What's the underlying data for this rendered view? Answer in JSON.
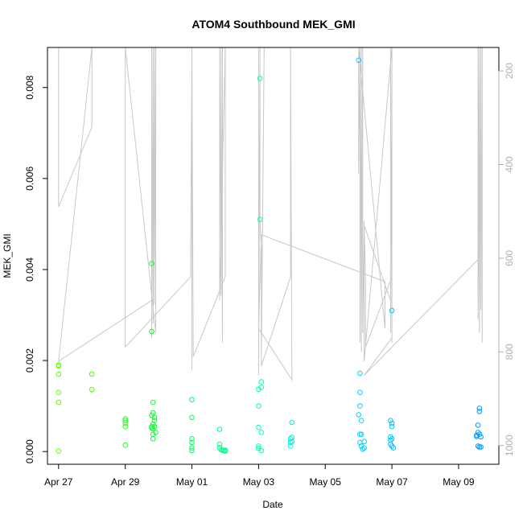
{
  "chart_data": {
    "type": "scatter",
    "title": "ATOM4 Southbound MEK_GMI",
    "xlabel": "Date",
    "ylabel": "MEK_GMI",
    "x_ticks": [
      "Apr 27",
      "Apr 29",
      "May 01",
      "May 03",
      "May 05",
      "May 07",
      "May 09"
    ],
    "y_ticks": [
      "0.000",
      "0.002",
      "0.004",
      "0.006",
      "0.008"
    ],
    "y2_ticks": [
      "200",
      "400",
      "600",
      "800",
      "1000"
    ],
    "xlim": [
      "2016-04-26T16:00",
      "2016-05-10T05:00"
    ],
    "ylim": [
      -0.00028,
      0.00888
    ],
    "y2lim": [
      1040,
      150
    ],
    "point_colors": [
      "#66ff00",
      "#00ff33",
      "#00ffcc",
      "#00ccff",
      "#0099ff"
    ],
    "points": [
      [
        "2016-04-27T00:00",
        0.0019
      ],
      [
        "2016-04-27T00:00",
        0.00188
      ],
      [
        "2016-04-27T00:00",
        0.0017
      ],
      [
        "2016-04-27T00:00",
        0.0013
      ],
      [
        "2016-04-27T00:00",
        0.00108
      ],
      [
        "2016-04-27T00:00",
        1e-05
      ],
      [
        "2016-04-28T00:00",
        0.0017
      ],
      [
        "2016-04-28T00:00",
        0.00136
      ],
      [
        "2016-04-29T00:00",
        0.00072
      ],
      [
        "2016-04-29T00:00",
        0.00068
      ],
      [
        "2016-04-29T00:00",
        0.00062
      ],
      [
        "2016-04-29T00:00",
        0.00055
      ],
      [
        "2016-04-29T00:00",
        0.00014
      ],
      [
        "2016-04-29T19:00",
        0.00413
      ],
      [
        "2016-04-29T19:00",
        0.00264
      ],
      [
        "2016-04-29T19:00",
        0.0008
      ],
      [
        "2016-04-29T19:00",
        0.00055
      ],
      [
        "2016-04-29T19:00",
        0.00052
      ],
      [
        "2016-04-29T20:00",
        0.00108
      ],
      [
        "2016-04-29T20:00",
        0.00085
      ],
      [
        "2016-04-29T20:00",
        0.0006
      ],
      [
        "2016-04-29T20:00",
        0.0005
      ],
      [
        "2016-04-29T20:00",
        0.00038
      ],
      [
        "2016-04-29T20:00",
        0.00028
      ],
      [
        "2016-04-29T21:00",
        0.00075
      ],
      [
        "2016-04-29T21:00",
        0.00068
      ],
      [
        "2016-04-29T21:00",
        0.00055
      ],
      [
        "2016-04-29T22:00",
        0.00042
      ],
      [
        "2016-05-01T00:00",
        0.00114
      ],
      [
        "2016-05-01T00:00",
        0.00075
      ],
      [
        "2016-05-01T00:00",
        0.00028
      ],
      [
        "2016-05-01T00:00",
        0.0002
      ],
      [
        "2016-05-01T00:00",
        8e-05
      ],
      [
        "2016-05-01T00:00",
        2e-05
      ],
      [
        "2016-05-01T20:00",
        0.00049
      ],
      [
        "2016-05-01T20:00",
        0.00016
      ],
      [
        "2016-05-01T20:00",
        8e-05
      ],
      [
        "2016-05-01T21:00",
        4e-05
      ],
      [
        "2016-05-01T22:00",
        3e-05
      ],
      [
        "2016-05-01T23:00",
        2e-05
      ],
      [
        "2016-05-02T00:00",
        3e-05
      ],
      [
        "2016-05-02T00:00",
        1e-05
      ],
      [
        "2016-05-03T00:00",
        0.00137
      ],
      [
        "2016-05-03T00:00",
        0.001
      ],
      [
        "2016-05-03T00:00",
        0.00053
      ],
      [
        "2016-05-03T00:00",
        0.00012
      ],
      [
        "2016-05-03T00:00",
        7e-05
      ],
      [
        "2016-05-03T01:00",
        0.0082
      ],
      [
        "2016-05-03T01:00",
        0.0051
      ],
      [
        "2016-05-03T02:00",
        0.00153
      ],
      [
        "2016-05-03T02:00",
        0.00141
      ],
      [
        "2016-05-03T02:00",
        0.00042
      ],
      [
        "2016-05-03T02:00",
        2e-05
      ],
      [
        "2016-05-03T23:00",
        0.00028
      ],
      [
        "2016-05-03T23:00",
        0.0002
      ],
      [
        "2016-05-03T23:00",
        0.00012
      ],
      [
        "2016-05-04T00:00",
        0.00064
      ],
      [
        "2016-05-04T00:00",
        0.00031
      ],
      [
        "2016-05-04T00:00",
        0.00022
      ],
      [
        "2016-05-06T00:00",
        0.0086
      ],
      [
        "2016-05-06T00:00",
        0.00081
      ],
      [
        "2016-05-06T01:00",
        0.00172
      ],
      [
        "2016-05-06T01:00",
        0.0013
      ],
      [
        "2016-05-06T01:00",
        0.001
      ],
      [
        "2016-05-06T01:00",
        0.00038
      ],
      [
        "2016-05-06T01:00",
        0.0002
      ],
      [
        "2016-05-06T02:00",
        0.00068
      ],
      [
        "2016-05-06T02:00",
        0.00038
      ],
      [
        "2016-05-06T02:00",
        0.00012
      ],
      [
        "2016-05-06T03:00",
        5e-05
      ],
      [
        "2016-05-06T04:00",
        0.00022
      ],
      [
        "2016-05-06T04:00",
        8e-05
      ],
      [
        "2016-05-06T23:00",
        0.00068
      ],
      [
        "2016-05-06T23:00",
        0.00032
      ],
      [
        "2016-05-06T23:00",
        0.00025
      ],
      [
        "2016-05-06T23:00",
        0.00016
      ],
      [
        "2016-05-07T00:00",
        0.00062
      ],
      [
        "2016-05-07T00:00",
        0.00055
      ],
      [
        "2016-05-07T00:00",
        0.00028
      ],
      [
        "2016-05-07T00:00",
        0.00012
      ],
      [
        "2016-05-07T00:00",
        0.0031
      ],
      [
        "2016-05-07T01:00",
        8e-05
      ],
      [
        "2016-05-09T13:00",
        0.00036
      ],
      [
        "2016-05-09T13:00",
        0.00033
      ],
      [
        "2016-05-09T14:00",
        0.00058
      ],
      [
        "2016-05-09T14:00",
        0.00042
      ],
      [
        "2016-05-09T14:00",
        0.00012
      ],
      [
        "2016-05-09T15:00",
        0.00095
      ],
      [
        "2016-05-09T15:00",
        0.00088
      ],
      [
        "2016-05-09T15:00",
        0.00038
      ],
      [
        "2016-05-09T15:00",
        0.0001
      ],
      [
        "2016-05-09T16:00",
        0.00032
      ],
      [
        "2016-05-09T16:00",
        0.0001
      ]
    ],
    "pressure_trace": [
      [
        "2016-04-27T00:00",
        150
      ],
      [
        "2016-04-27T00:00",
        490
      ],
      [
        "2016-04-28T00:00",
        320
      ],
      [
        "2016-04-28T00:00",
        150
      ],
      [
        "2016-04-28T00:00",
        150
      ],
      [
        "2016-04-27T00:00",
        820
      ],
      [
        "2016-04-29T19:00",
        690
      ],
      [
        "2016-04-29T19:00",
        150
      ],
      [
        "2016-04-29T19:00",
        770
      ],
      [
        "2016-04-29T20:00",
        150
      ],
      [
        "2016-04-29T20:00",
        740
      ],
      [
        "2016-04-29T21:00",
        150
      ],
      [
        "2016-04-29T21:00",
        700
      ],
      [
        "2016-04-29T22:00",
        150
      ],
      [
        "2016-04-29T22:00",
        760
      ],
      [
        "2016-04-29T00:00",
        150
      ],
      [
        "2016-04-29T00:00",
        790
      ],
      [
        "2016-04-30T23:00",
        640
      ],
      [
        "2016-05-01T00:00",
        150
      ],
      [
        "2016-05-01T00:00",
        840
      ],
      [
        "2016-05-01T00:00",
        150
      ],
      [
        "2016-05-01T01:00",
        810
      ],
      [
        "2016-05-02T00:00",
        640
      ],
      [
        "2016-05-02T00:00",
        150
      ],
      [
        "2016-05-01T20:00",
        690
      ],
      [
        "2016-05-01T20:00",
        150
      ],
      [
        "2016-05-01T21:00",
        680
      ],
      [
        "2016-05-01T21:00",
        150
      ],
      [
        "2016-05-01T22:00",
        780
      ],
      [
        "2016-05-01T22:00",
        150
      ],
      [
        "2016-05-03T00:00",
        150
      ],
      [
        "2016-05-03T00:00",
        850
      ],
      [
        "2016-05-03T01:00",
        150
      ],
      [
        "2016-05-03T01:00",
        520
      ],
      [
        "2016-05-03T02:00",
        580
      ],
      [
        "2016-05-03T02:00",
        800
      ],
      [
        "2016-05-03T04:00",
        150
      ],
      [
        "2016-05-03T02:00",
        830
      ],
      [
        "2016-05-03T23:00",
        640
      ],
      [
        "2016-05-03T23:00",
        150
      ],
      [
        "2016-05-04T00:00",
        860
      ],
      [
        "2016-05-03T00:00",
        750
      ],
      [
        "2016-05-03T02:00",
        550
      ],
      [
        "2016-05-06T19:00",
        650
      ],
      [
        "2016-05-06T19:00",
        750
      ],
      [
        "2016-05-06T00:00",
        150
      ],
      [
        "2016-05-06T00:00",
        420
      ],
      [
        "2016-05-06T01:00",
        150
      ],
      [
        "2016-05-06T01:00",
        780
      ],
      [
        "2016-05-06T02:00",
        150
      ],
      [
        "2016-05-06T02:00",
        800
      ],
      [
        "2016-05-06T03:00",
        150
      ],
      [
        "2016-05-06T03:00",
        760
      ],
      [
        "2016-05-06T04:00",
        520
      ],
      [
        "2016-05-06T04:00",
        820
      ],
      [
        "2016-05-07T00:00",
        150
      ],
      [
        "2016-05-07T00:00",
        780
      ],
      [
        "2016-05-06T23:00",
        150
      ],
      [
        "2016-05-06T23:00",
        760
      ],
      [
        "2016-05-06T23:00",
        690
      ],
      [
        "2016-05-06T04:00",
        530
      ],
      [
        "2016-05-06T05:00",
        640
      ],
      [
        "2016-05-06T05:00",
        790
      ],
      [
        "2016-05-07T00:00",
        640
      ],
      [
        "2016-05-07T00:00",
        770
      ],
      [
        "2016-05-06T04:00",
        850
      ],
      [
        "2016-05-09T15:00",
        600
      ],
      [
        "2016-05-09T15:00",
        150
      ],
      [
        "2016-05-09T14:00",
        730
      ],
      [
        "2016-05-09T14:00",
        150
      ],
      [
        "2016-05-09T15:00",
        760
      ],
      [
        "2016-05-09T16:00",
        150
      ],
      [
        "2016-05-09T16:00",
        710
      ],
      [
        "2016-05-09T16:00",
        150
      ],
      [
        "2016-05-09T17:00",
        780
      ],
      [
        "2016-05-09T17:00",
        150
      ],
      [
        "2016-05-09T17:00",
        600
      ]
    ],
    "trace_color": "#c8c8c8",
    "right_axis_color": "#b0b0b0",
    "grid": false
  }
}
